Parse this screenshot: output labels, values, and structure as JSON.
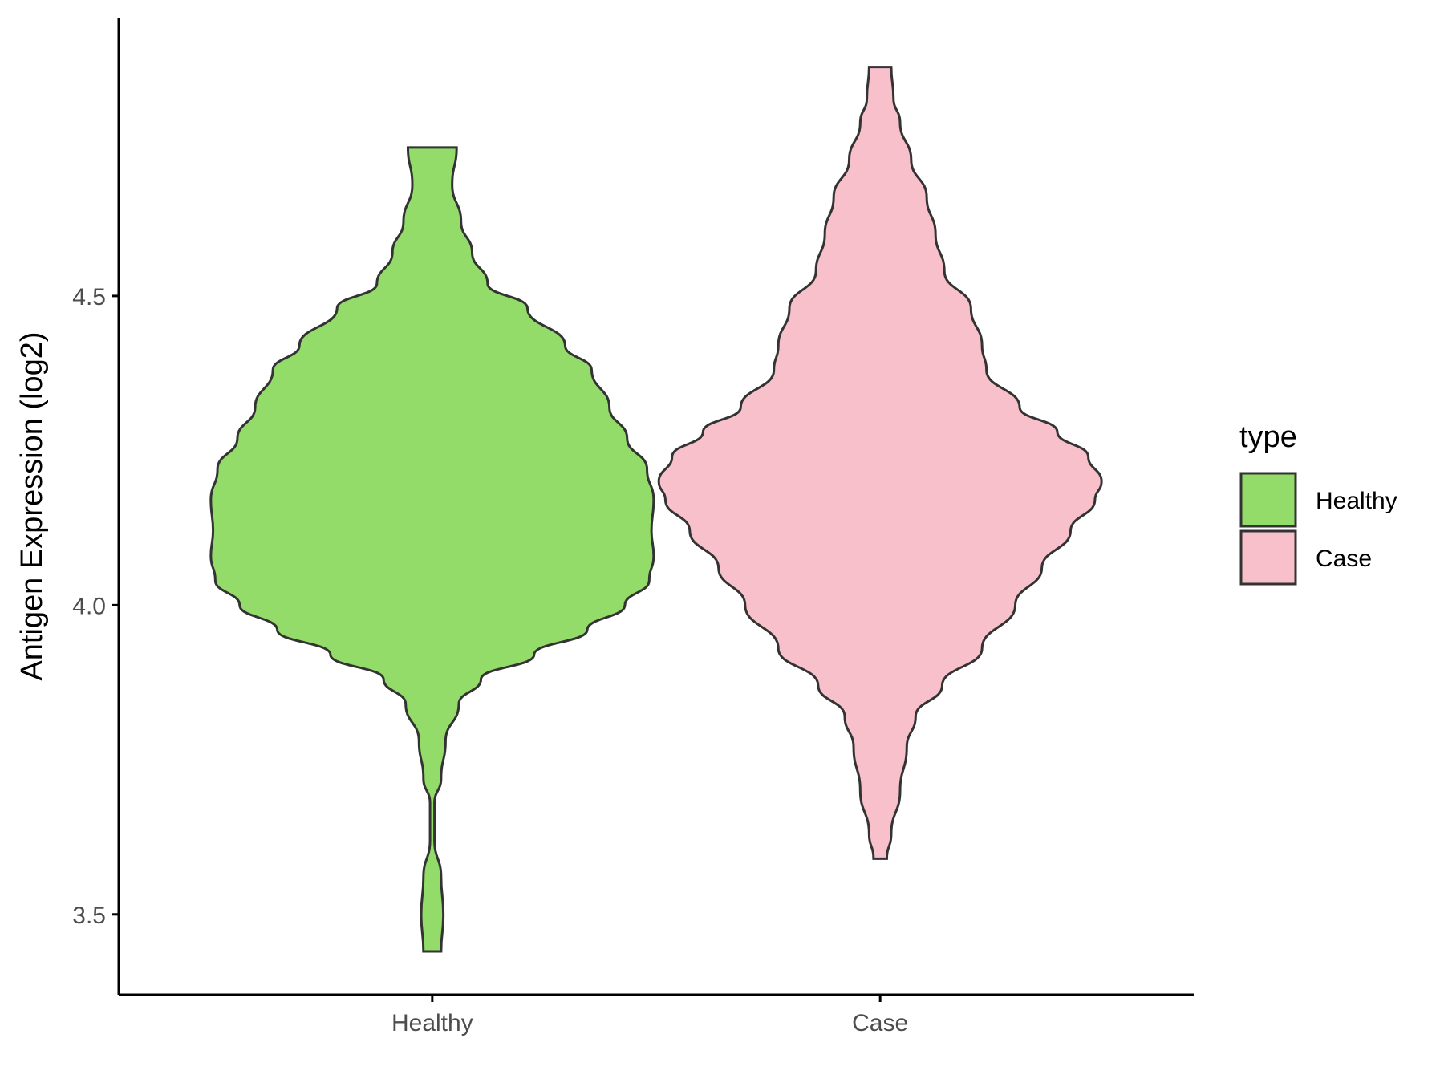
{
  "chart_data": {
    "type": "violin",
    "title": "",
    "xlabel": "",
    "ylabel": "Antigen Expression (log2)",
    "ylim": [
      3.37,
      4.95
    ],
    "y_ticks": [
      "3.5",
      "4.0",
      "4.5"
    ],
    "y_tick_values": [
      3.5,
      4.0,
      4.5
    ],
    "grid": false,
    "legend": {
      "title": "type",
      "position": "right",
      "entries": [
        {
          "label": "Healthy",
          "color": "#93dc6a"
        },
        {
          "label": "Case",
          "color": "#f8c0cb"
        }
      ]
    },
    "categories": [
      "Healthy",
      "Case"
    ],
    "series": [
      {
        "category": "Healthy",
        "color": "#93dc6a",
        "min": 3.44,
        "max": 4.74,
        "density": [
          [
            3.44,
            0.04
          ],
          [
            3.5,
            0.05
          ],
          [
            3.56,
            0.04
          ],
          [
            3.62,
            0.01
          ],
          [
            3.68,
            0.01
          ],
          [
            3.72,
            0.04
          ],
          [
            3.78,
            0.06
          ],
          [
            3.84,
            0.12
          ],
          [
            3.88,
            0.22
          ],
          [
            3.92,
            0.46
          ],
          [
            3.96,
            0.7
          ],
          [
            4.0,
            0.87
          ],
          [
            4.04,
            0.98
          ],
          [
            4.08,
            1.0
          ],
          [
            4.12,
            0.99
          ],
          [
            4.17,
            1.0
          ],
          [
            4.22,
            0.97
          ],
          [
            4.27,
            0.88
          ],
          [
            4.32,
            0.8
          ],
          [
            4.38,
            0.72
          ],
          [
            4.42,
            0.6
          ],
          [
            4.48,
            0.43
          ],
          [
            4.52,
            0.25
          ],
          [
            4.57,
            0.18
          ],
          [
            4.62,
            0.13
          ],
          [
            4.68,
            0.09
          ],
          [
            4.74,
            0.11
          ]
        ]
      },
      {
        "category": "Case",
        "color": "#f8c0cb",
        "min": 3.59,
        "max": 4.87,
        "density": [
          [
            3.59,
            0.03
          ],
          [
            3.63,
            0.05
          ],
          [
            3.7,
            0.09
          ],
          [
            3.77,
            0.12
          ],
          [
            3.82,
            0.16
          ],
          [
            3.87,
            0.28
          ],
          [
            3.93,
            0.46
          ],
          [
            4.0,
            0.61
          ],
          [
            4.06,
            0.73
          ],
          [
            4.12,
            0.86
          ],
          [
            4.17,
            0.97
          ],
          [
            4.2,
            1.0
          ],
          [
            4.24,
            0.94
          ],
          [
            4.28,
            0.8
          ],
          [
            4.32,
            0.63
          ],
          [
            4.38,
            0.48
          ],
          [
            4.42,
            0.46
          ],
          [
            4.48,
            0.41
          ],
          [
            4.54,
            0.29
          ],
          [
            4.6,
            0.25
          ],
          [
            4.66,
            0.21
          ],
          [
            4.72,
            0.14
          ],
          [
            4.78,
            0.09
          ],
          [
            4.82,
            0.06
          ],
          [
            4.87,
            0.05
          ]
        ]
      }
    ]
  }
}
